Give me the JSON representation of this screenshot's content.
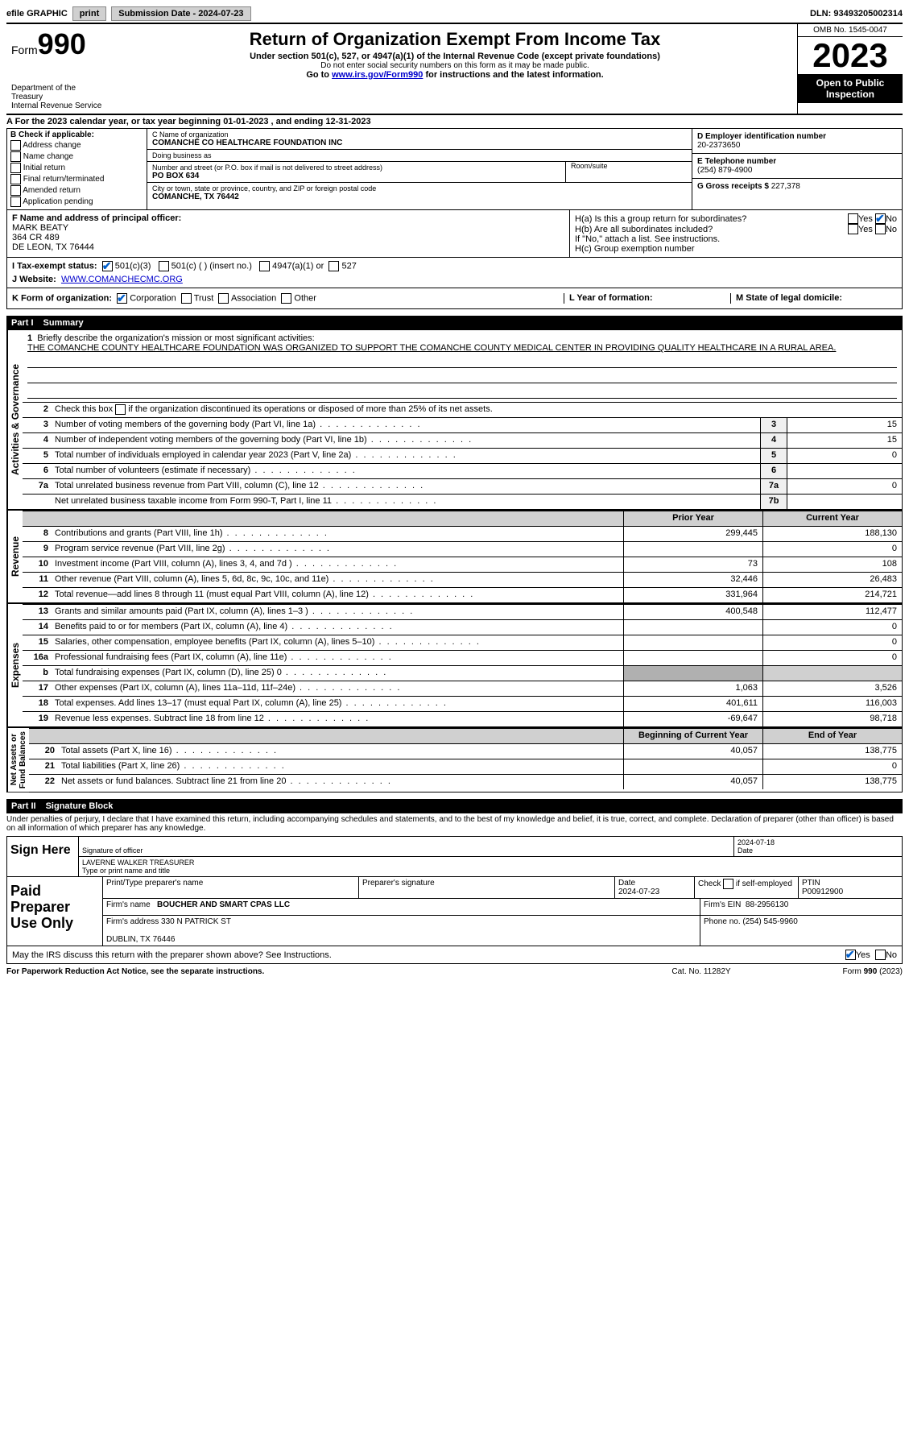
{
  "topbar": {
    "efile": "efile GRAPHIC",
    "print": "print",
    "sub_label": "Submission Date - 2024-07-23",
    "dln_label": "DLN: 93493205002314"
  },
  "header": {
    "form_word": "Form",
    "form_num": "990",
    "title": "Return of Organization Exempt From Income Tax",
    "sub1": "Under section 501(c), 527, or 4947(a)(1) of the Internal Revenue Code (except private foundations)",
    "sub2": "Do not enter social security numbers on this form as it may be made public.",
    "sub3_pre": "Go to ",
    "sub3_link": "www.irs.gov/Form990",
    "sub3_post": " for instructions and the latest information.",
    "dept": "Department of the Treasury\nInternal Revenue Service",
    "omb": "OMB No. 1545-0047",
    "year": "2023",
    "public": "Open to Public Inspection"
  },
  "lineA": "A For the 2023 calendar year, or tax year beginning 01-01-2023    , and ending 12-31-2023",
  "boxB": {
    "hdr": "B Check if applicable:",
    "addr": "Address change",
    "name": "Name change",
    "init": "Initial return",
    "final": "Final return/terminated",
    "amend": "Amended return",
    "app": "Application pending"
  },
  "boxC": {
    "name_lbl": "C Name of organization",
    "name_val": "COMANCHE CO HEALTHCARE FOUNDATION INC",
    "dba_lbl": "Doing business as",
    "street_lbl": "Number and street (or P.O. box if mail is not delivered to street address)",
    "street_val": "PO BOX 634",
    "room_lbl": "Room/suite",
    "city_lbl": "City or town, state or province, country, and ZIP or foreign postal code",
    "city_val": "COMANCHE, TX  76442"
  },
  "boxD": {
    "ein_lbl": "D Employer identification number",
    "ein_val": "20-2373650",
    "phone_lbl": "E Telephone number",
    "phone_val": "(254) 879-4900",
    "gross_lbl": "G Gross receipts $",
    "gross_val": "227,378"
  },
  "boxF": {
    "lbl": "F  Name and address of principal officer:",
    "val": "MARK BEATY\n364 CR 489\nDE LEON, TX  76444"
  },
  "boxH": {
    "a": "H(a)  Is this a group return for subordinates?",
    "b": "H(b)  Are all subordinates included?",
    "bnote": "If \"No,\" attach a list. See instructions.",
    "c": "H(c)  Group exemption number",
    "yes": "Yes",
    "no": "No"
  },
  "lineI": {
    "lbl": "I    Tax-exempt status:",
    "c3": "501(c)(3)",
    "c": "501(c) (  ) (insert no.)",
    "a47": "4947(a)(1) or",
    "s527": "527"
  },
  "lineJ": {
    "lbl": "J   Website:",
    "val": "WWW.COMANCHECMC.ORG"
  },
  "lineK": {
    "lbl": "K Form of organization:",
    "corp": "Corporation",
    "trust": "Trust",
    "assoc": "Association",
    "other": "Other"
  },
  "lineL": "L Year of formation:",
  "lineM": "M State of legal domicile:",
  "part1": {
    "num": "Part I",
    "title": "Summary"
  },
  "mission": {
    "lbl": "Briefly describe the organization's mission or most significant activities:",
    "txt": "THE COMANCHE COUNTY HEALTHCARE FOUNDATION WAS ORGANIZED TO SUPPORT THE COMANCHE COUNTY MEDICAL CENTER IN PROVIDING QUALITY HEALTHCARE IN A RURAL AREA."
  },
  "line2": "Check this box      if the organization discontinued its operations or disposed of more than 25% of its net assets.",
  "rows_gov": [
    {
      "n": "3",
      "d": "Number of voting members of the governing body (Part VI, line 1a)",
      "c": "3",
      "v": "15"
    },
    {
      "n": "4",
      "d": "Number of independent voting members of the governing body (Part VI, line 1b)",
      "c": "4",
      "v": "15"
    },
    {
      "n": "5",
      "d": "Total number of individuals employed in calendar year 2023 (Part V, line 2a)",
      "c": "5",
      "v": "0"
    },
    {
      "n": "6",
      "d": "Total number of volunteers (estimate if necessary)",
      "c": "6",
      "v": ""
    },
    {
      "n": "7a",
      "d": "Total unrelated business revenue from Part VIII, column (C), line 12",
      "c": "7a",
      "v": "0"
    },
    {
      "n": "",
      "d": "Net unrelated business taxable income from Form 990-T, Part I, line 11",
      "c": "7b",
      "v": ""
    }
  ],
  "col_hdrs": {
    "py": "Prior Year",
    "cy": "Current Year"
  },
  "rows_rev": [
    {
      "n": "8",
      "d": "Contributions and grants (Part VIII, line 1h)",
      "py": "299,445",
      "cy": "188,130"
    },
    {
      "n": "9",
      "d": "Program service revenue (Part VIII, line 2g)",
      "py": "",
      "cy": "0"
    },
    {
      "n": "10",
      "d": "Investment income (Part VIII, column (A), lines 3, 4, and 7d )",
      "py": "73",
      "cy": "108"
    },
    {
      "n": "11",
      "d": "Other revenue (Part VIII, column (A), lines 5, 6d, 8c, 9c, 10c, and 11e)",
      "py": "32,446",
      "cy": "26,483"
    },
    {
      "n": "12",
      "d": "Total revenue—add lines 8 through 11 (must equal Part VIII, column (A), line 12)",
      "py": "331,964",
      "cy": "214,721"
    }
  ],
  "rows_exp": [
    {
      "n": "13",
      "d": "Grants and similar amounts paid (Part IX, column (A), lines 1–3 )",
      "py": "400,548",
      "cy": "112,477"
    },
    {
      "n": "14",
      "d": "Benefits paid to or for members (Part IX, column (A), line 4)",
      "py": "",
      "cy": "0"
    },
    {
      "n": "15",
      "d": "Salaries, other compensation, employee benefits (Part IX, column (A), lines 5–10)",
      "py": "",
      "cy": "0"
    },
    {
      "n": "16a",
      "d": "Professional fundraising fees (Part IX, column (A), line 11e)",
      "py": "",
      "cy": "0"
    },
    {
      "n": "b",
      "d": "Total fundraising expenses (Part IX, column (D), line 25) 0",
      "py": "na",
      "cy": "na"
    },
    {
      "n": "17",
      "d": "Other expenses (Part IX, column (A), lines 11a–11d, 11f–24e)",
      "py": "1,063",
      "cy": "3,526"
    },
    {
      "n": "18",
      "d": "Total expenses. Add lines 13–17 (must equal Part IX, column (A), line 25)",
      "py": "401,611",
      "cy": "116,003"
    },
    {
      "n": "19",
      "d": "Revenue less expenses. Subtract line 18 from line 12",
      "py": "-69,647",
      "cy": "98,718"
    }
  ],
  "col_hdrs2": {
    "py": "Beginning of Current Year",
    "cy": "End of Year"
  },
  "rows_net": [
    {
      "n": "20",
      "d": "Total assets (Part X, line 16)",
      "py": "40,057",
      "cy": "138,775"
    },
    {
      "n": "21",
      "d": "Total liabilities (Part X, line 26)",
      "py": "",
      "cy": "0"
    },
    {
      "n": "22",
      "d": "Net assets or fund balances. Subtract line 21 from line 20",
      "py": "40,057",
      "cy": "138,775"
    }
  ],
  "vlabels": {
    "gov": "Activities & Governance",
    "rev": "Revenue",
    "exp": "Expenses",
    "net": "Net Assets or\nFund Balances"
  },
  "part2": {
    "num": "Part II",
    "title": "Signature Block"
  },
  "perjury": "Under penalties of perjury, I declare that I have examined this return, including accompanying schedules and statements, and to the best of my knowledge and belief, it is true, correct, and complete. Declaration of preparer (other than officer) is based on all information of which preparer has any knowledge.",
  "sign": {
    "here": "Sign Here",
    "sig_lbl": "Signature of officer",
    "date_val": "2024-07-18",
    "date_lbl": "Date",
    "name": "LAVERNE WALKER  TREASURER",
    "name_lbl": "Type or print name and title"
  },
  "paid": {
    "hdr": "Paid Preparer Use Only",
    "c1": "Print/Type preparer's name",
    "c2": "Preparer's signature",
    "c3_lbl": "Date",
    "c3_val": "2024-07-23",
    "c4": "Check        if self-employed",
    "c5_lbl": "PTIN",
    "c5_val": "P00912900",
    "firm_lbl": "Firm's name",
    "firm_val": "BOUCHER AND SMART CPAS LLC",
    "ein_lbl": "Firm's EIN",
    "ein_val": "88-2956130",
    "addr_lbl": "Firm's address",
    "addr_val": "330 N PATRICK ST\n\nDUBLIN, TX  76446",
    "phone_lbl": "Phone no.",
    "phone_val": "(254) 545-9960"
  },
  "discuss": "May the IRS discuss this return with the preparer shown above? See Instructions.",
  "footer": {
    "pra": "For Paperwork Reduction Act Notice, see the separate instructions.",
    "cat": "Cat. No. 11282Y",
    "form": "Form 990 (2023)"
  }
}
